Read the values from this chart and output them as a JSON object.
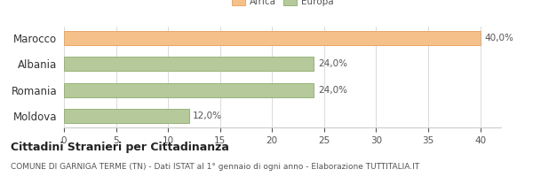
{
  "categories": [
    "Marocco",
    "Albania",
    "Romania",
    "Moldova"
  ],
  "values": [
    40.0,
    24.0,
    24.0,
    12.0
  ],
  "bar_colors": [
    "#f5c08a",
    "#b5c99a",
    "#b5c99a",
    "#b5c99a"
  ],
  "bar_edge_colors": [
    "#e8a96a",
    "#96b47a",
    "#96b47a",
    "#96b47a"
  ],
  "value_labels": [
    "40,0%",
    "24,0%",
    "24,0%",
    "12,0%"
  ],
  "legend_labels": [
    "Africa",
    "Europa"
  ],
  "legend_colors": [
    "#f5c08a",
    "#b5c99a"
  ],
  "legend_edge_colors": [
    "#e8a96a",
    "#96b47a"
  ],
  "xlim": [
    0,
    42
  ],
  "xticks": [
    0,
    5,
    10,
    15,
    20,
    25,
    30,
    35,
    40
  ],
  "title_main": "Cittadini Stranieri per Cittadinanza",
  "title_sub": "COMUNE DI GARNIGA TERME (TN) - Dati ISTAT al 1° gennaio di ogni anno - Elaborazione TUTTITALIA.IT",
  "background_color": "#ffffff",
  "bar_height": 0.55,
  "value_fontsize": 7.5,
  "tick_fontsize": 7.5,
  "ylabel_fontsize": 8.5,
  "title_fontsize": 9,
  "subtitle_fontsize": 6.5
}
